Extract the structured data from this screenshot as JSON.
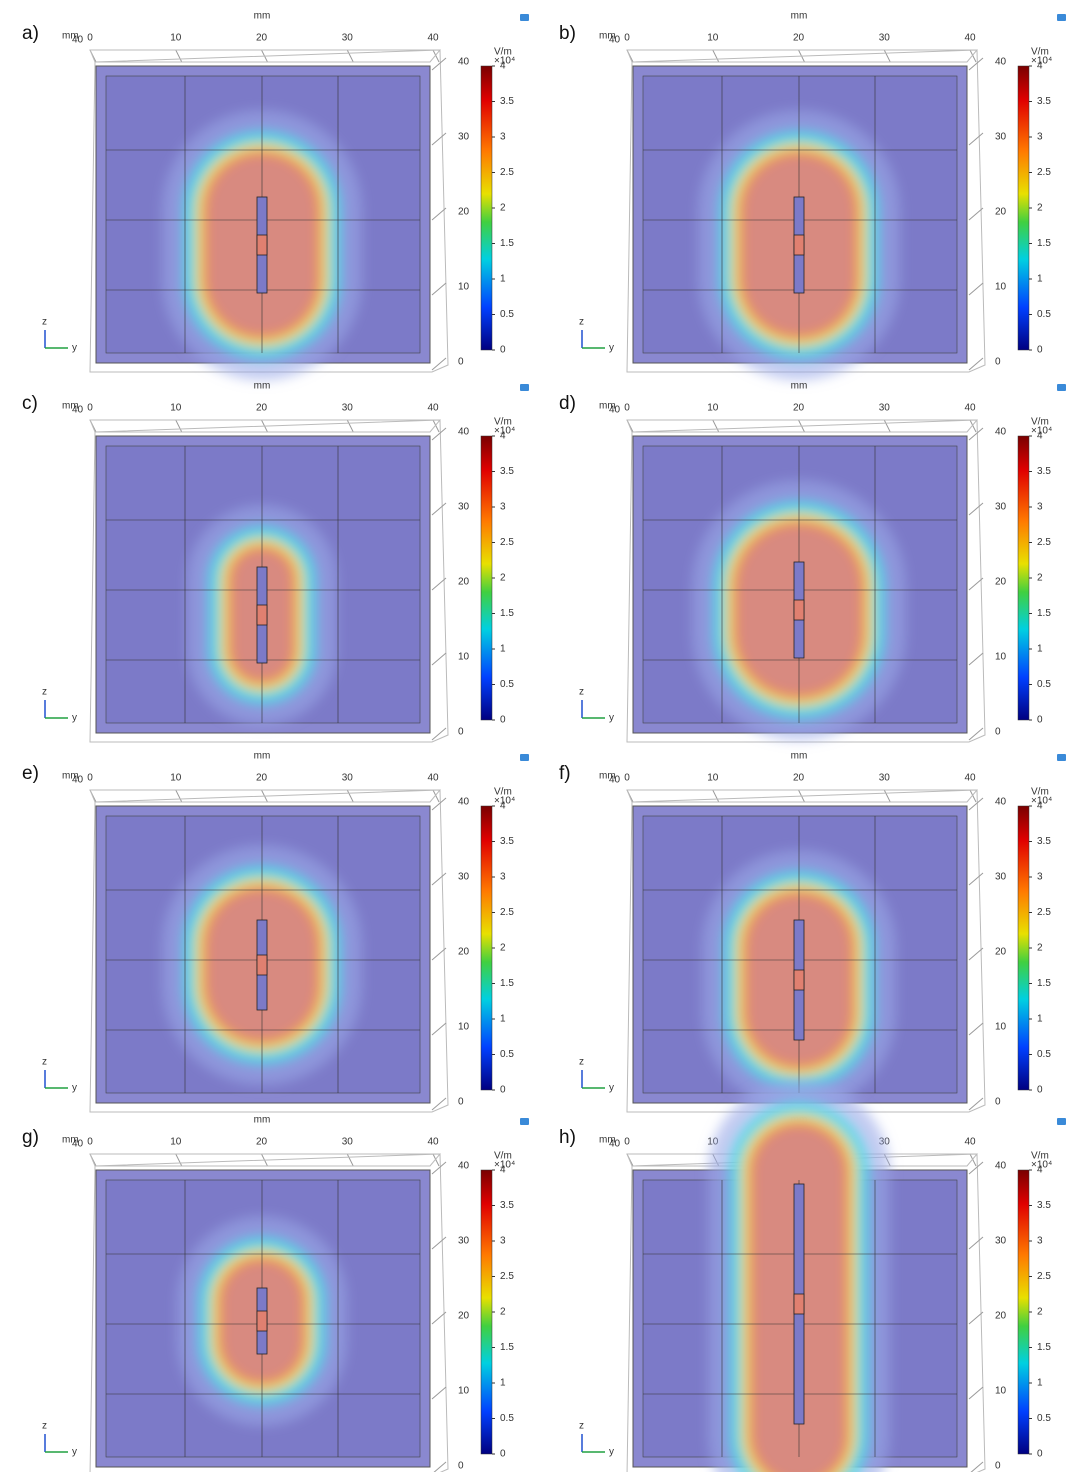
{
  "panels": [
    {
      "label": "a)"
    },
    {
      "label": "b)"
    },
    {
      "label": "c)"
    },
    {
      "label": "d)"
    },
    {
      "label": "e)"
    },
    {
      "label": "f)"
    },
    {
      "label": "g)"
    },
    {
      "label": "h)"
    }
  ],
  "axes": {
    "unit": "mm",
    "top_ticks": [
      0,
      10,
      20,
      30,
      40
    ],
    "side_ticks": [
      40,
      30,
      20,
      10,
      0
    ],
    "triad": [
      "z",
      "y"
    ]
  },
  "colorbar": {
    "unit": "V/m",
    "scale": "×10⁴",
    "ticks": [
      4,
      3.5,
      3,
      2.5,
      2,
      1.5,
      1,
      0.5,
      0
    ]
  }
}
